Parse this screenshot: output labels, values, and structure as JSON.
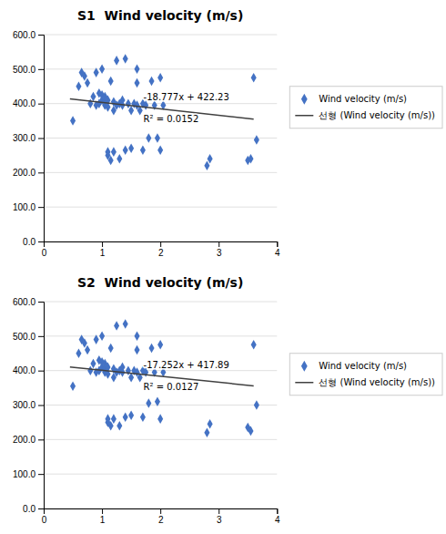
{
  "chart_data": [
    {
      "type": "scatter",
      "title": "S1  Wind velocity (m/s)",
      "x": [
        0.5,
        0.6,
        0.65,
        0.7,
        0.75,
        0.8,
        0.85,
        0.9,
        0.9,
        0.95,
        0.95,
        1.0,
        1.0,
        1.0,
        1.05,
        1.05,
        1.05,
        1.1,
        1.1,
        1.1,
        1.1,
        1.15,
        1.15,
        1.2,
        1.2,
        1.2,
        1.25,
        1.25,
        1.3,
        1.3,
        1.35,
        1.35,
        1.4,
        1.4,
        1.45,
        1.5,
        1.5,
        1.55,
        1.6,
        1.6,
        1.6,
        1.65,
        1.7,
        1.7,
        1.75,
        1.8,
        1.85,
        1.9,
        1.95,
        2.0,
        2.0,
        2.05,
        2.8,
        2.85,
        3.5,
        3.55,
        3.6,
        3.65
      ],
      "series": [
        {
          "name": "Wind velocity (m/s)",
          "type": "scatter",
          "color": "#4472C4",
          "marker": "diamond",
          "values": [
            350,
            450,
            490,
            480,
            460,
            400,
            420,
            490,
            395,
            400,
            430,
            410,
            425,
            500,
            395,
            405,
            420,
            250,
            260,
            390,
            410,
            235,
            465,
            260,
            380,
            405,
            395,
            525,
            240,
            400,
            395,
            410,
            265,
            530,
            400,
            270,
            380,
            400,
            395,
            460,
            500,
            380,
            400,
            265,
            395,
            300,
            465,
            395,
            300,
            265,
            475,
            395,
            220,
            240,
            235,
            240,
            475,
            295
          ]
        },
        {
          "name": "선형 (Wind velocity (m/s))",
          "type": "line",
          "color": "#404040",
          "line_style": "solid",
          "x": [
            0.45,
            3.6
          ],
          "values": [
            413.78035,
            354.6328
          ]
        }
      ],
      "annotations": [
        "-18.777x + 422.23",
        "R² = 0.0152"
      ],
      "xlim": [
        0,
        4
      ],
      "xticks": [
        0,
        1,
        2,
        3,
        4
      ],
      "ylim": [
        0,
        600
      ],
      "yticks": [
        {
          "value": 0,
          "label": "0.0"
        },
        {
          "value": 100,
          "label": "100.0"
        },
        {
          "value": 200,
          "label": "200.0"
        },
        {
          "value": 300,
          "label": "300.0"
        },
        {
          "value": 400,
          "label": "400.0"
        },
        {
          "value": 500,
          "label": "500.0"
        },
        {
          "value": 600,
          "label": "600.0"
        }
      ],
      "grid": true,
      "legend": "right"
    },
    {
      "type": "scatter",
      "title": "S2  Wind velocity (m/s)",
      "x": [
        0.5,
        0.6,
        0.65,
        0.7,
        0.75,
        0.8,
        0.85,
        0.9,
        0.9,
        0.95,
        0.95,
        1.0,
        1.0,
        1.0,
        1.05,
        1.05,
        1.05,
        1.1,
        1.1,
        1.1,
        1.1,
        1.15,
        1.15,
        1.2,
        1.2,
        1.2,
        1.25,
        1.25,
        1.3,
        1.3,
        1.35,
        1.35,
        1.4,
        1.4,
        1.45,
        1.5,
        1.5,
        1.55,
        1.6,
        1.6,
        1.6,
        1.65,
        1.7,
        1.7,
        1.75,
        1.8,
        1.85,
        1.9,
        1.95,
        2.0,
        2.0,
        2.05,
        2.8,
        2.85,
        3.5,
        3.55,
        3.6,
        3.65
      ],
      "series": [
        {
          "name": "Wind velocity (m/s)",
          "type": "scatter",
          "color": "#4472C4",
          "marker": "diamond",
          "values": [
            355,
            450,
            490,
            480,
            460,
            400,
            420,
            490,
            395,
            400,
            430,
            410,
            425,
            500,
            395,
            405,
            420,
            250,
            260,
            390,
            410,
            240,
            465,
            260,
            380,
            405,
            395,
            530,
            240,
            400,
            395,
            410,
            265,
            535,
            400,
            270,
            380,
            400,
            395,
            460,
            500,
            380,
            400,
            265,
            395,
            305,
            465,
            395,
            310,
            260,
            475,
            395,
            220,
            245,
            235,
            225,
            475,
            300
          ]
        },
        {
          "name": "선형 (Wind velocity (m/s))",
          "type": "line",
          "color": "#404040",
          "line_style": "solid",
          "x": [
            0.45,
            3.6
          ],
          "values": [
            410.1266,
            355.7828
          ]
        }
      ],
      "annotations": [
        "-17.252x + 417.89",
        "R² = 0.0127"
      ],
      "xlim": [
        0,
        4
      ],
      "xticks": [
        0,
        1,
        2,
        3,
        4
      ],
      "ylim": [
        0,
        600
      ],
      "yticks": [
        {
          "value": 0,
          "label": "0.0"
        },
        {
          "value": 100,
          "label": "100.0"
        },
        {
          "value": 200,
          "label": "200.0"
        },
        {
          "value": 300,
          "label": "300.0"
        },
        {
          "value": 400,
          "label": "400.0"
        },
        {
          "value": 500,
          "label": "500.0"
        },
        {
          "value": 600,
          "label": "600.0"
        }
      ],
      "grid": true,
      "legend": "right"
    }
  ]
}
